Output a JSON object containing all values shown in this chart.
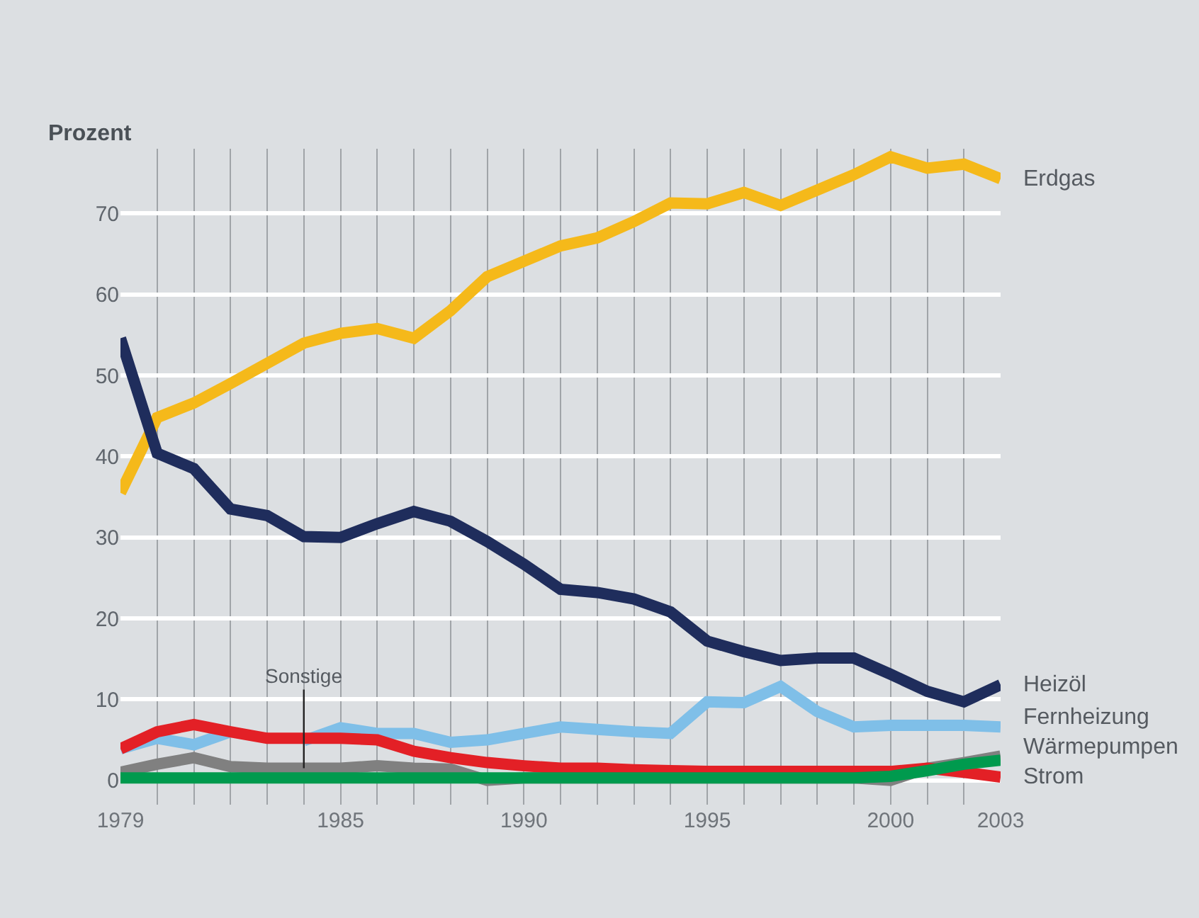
{
  "chart_data": {
    "type": "line",
    "ylabel": "Prozent",
    "x": [
      1979,
      1980,
      1981,
      1982,
      1983,
      1984,
      1985,
      1986,
      1987,
      1988,
      1989,
      1990,
      1991,
      1992,
      1993,
      1994,
      1995,
      1996,
      1997,
      1998,
      1999,
      2000,
      2001,
      2002,
      2003
    ],
    "series": [
      {
        "name": "Erdgas",
        "color": "#f5b91a",
        "values": [
          35.5,
          44.8,
          46.6,
          49,
          51.5,
          54,
          55.2,
          55.8,
          54.6,
          58,
          62.2,
          64.1,
          66,
          67,
          69,
          71.3,
          71.2,
          72.6,
          71,
          72.9,
          74.8,
          77,
          75.6,
          76.1,
          74.3
        ]
      },
      {
        "name": "Heizöl",
        "color": "#1f2d5c",
        "values": [
          54.6,
          40.4,
          38.5,
          33.5,
          32.7,
          30.1,
          30,
          31.7,
          33.2,
          32,
          29.5,
          26.7,
          23.6,
          23.2,
          22.4,
          20.8,
          17.2,
          15.9,
          14.8,
          15.1,
          15.1,
          13.1,
          11,
          9.7,
          11.8
        ]
      },
      {
        "name": "Fernheizung",
        "color": "#7fbfe8",
        "values": [
          3.9,
          5.2,
          4.4,
          6,
          null,
          4.9,
          6.5,
          5.8,
          5.8,
          4.7,
          5,
          5.8,
          6.6,
          6.3,
          6,
          5.8,
          9.7,
          9.6,
          11.6,
          8.5,
          6.6,
          6.8,
          6.8,
          6.8,
          6.6
        ]
      },
      {
        "color": "#808080",
        "values": [
          1,
          2,
          2.8,
          1.7,
          1.5,
          1.5,
          1.5,
          1.8,
          1.5,
          1.4,
          0,
          0.3,
          0.3,
          0.3,
          0.3,
          0.3,
          0.3,
          0.3,
          0.3,
          0.3,
          0.3,
          0,
          1.5,
          2.2,
          3
        ]
      },
      {
        "name": "Strom",
        "color": "#e32026",
        "values": [
          3.9,
          6,
          6.9,
          6,
          5.2,
          5.2,
          5.2,
          5,
          3.6,
          2.8,
          2.2,
          1.8,
          1.5,
          1.5,
          1.3,
          1.2,
          1.1,
          1.1,
          1.1,
          1.1,
          1.1,
          1.1,
          1.5,
          1,
          0.4
        ]
      },
      {
        "name": "Wärmepumpen",
        "color": "#009a4e",
        "values": [
          0.3,
          0.3,
          0.3,
          0.3,
          0.3,
          0.3,
          0.3,
          0.3,
          0.3,
          0.3,
          0.3,
          0.3,
          0.3,
          0.3,
          0.3,
          0.3,
          0.3,
          0.3,
          0.3,
          0.3,
          0.3,
          0.5,
          1.2,
          2,
          2.5
        ]
      }
    ],
    "annotations": [
      {
        "text": "Sonstige",
        "x": 1984,
        "y": 1.5
      }
    ],
    "xlim": [
      1979,
      2003
    ],
    "ylim": [
      -3,
      78
    ],
    "xticks": [
      1979,
      {
        "value": 1980,
        "label": null
      },
      {
        "value": 1981,
        "label": null
      },
      {
        "value": 1982,
        "label": null
      },
      {
        "value": 1983,
        "label": null
      },
      {
        "value": 1984,
        "label": null
      },
      1985,
      {
        "value": 1986,
        "label": null
      },
      {
        "value": 1987,
        "label": null
      },
      {
        "value": 1988,
        "label": null
      },
      {
        "value": 1989,
        "label": null
      },
      1990,
      {
        "value": 1991,
        "label": null
      },
      {
        "value": 1992,
        "label": null
      },
      {
        "value": 1993,
        "label": null
      },
      {
        "value": 1994,
        "label": null
      },
      1995,
      {
        "value": 1996,
        "label": null
      },
      {
        "value": 1997,
        "label": null
      },
      {
        "value": 1998,
        "label": null
      },
      {
        "value": 1999,
        "label": null
      },
      2000,
      {
        "value": 2001,
        "label": null
      },
      {
        "value": 2002,
        "label": null
      },
      2003
    ],
    "yticks": [
      0,
      10,
      20,
      30,
      40,
      50,
      60,
      70
    ],
    "grid": true,
    "legend": false,
    "marker": "none",
    "line_style": "solid"
  }
}
